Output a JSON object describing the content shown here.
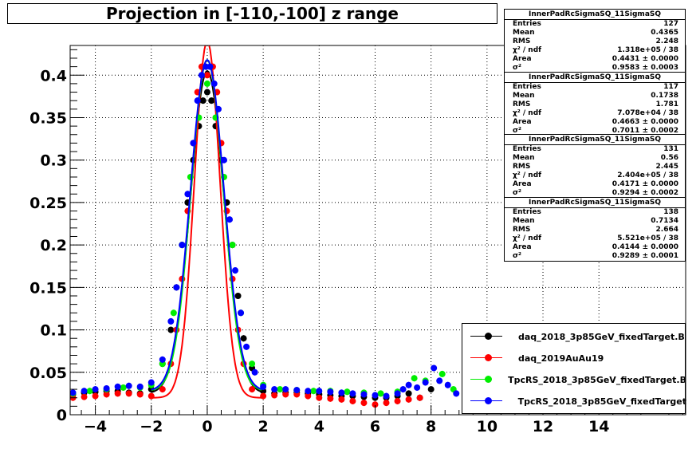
{
  "title": "Projection in [-110,-100] z range",
  "stat_boxes": [
    {
      "name": "InnerPadRcSigmaSQ_11SigmaSQ",
      "entries": "127",
      "mean": "0.4365",
      "rms": "2.248",
      "chi2ndf": "1.318e+05 / 38",
      "area": "0.4431 ± 0.0000",
      "sigma2": "0.9583 ± 0.0003"
    },
    {
      "name": "InnerPadRcSigmaSQ_11SigmaSQ",
      "entries": "117",
      "mean": "0.1738",
      "rms": "1.781",
      "chi2ndf": "7.078e+04 / 38",
      "area": "0.4663 ± 0.0000",
      "sigma2": "0.7011 ± 0.0002"
    },
    {
      "name": "InnerPadRcSigmaSQ_11SigmaSQ",
      "entries": "131",
      "mean": "0.56",
      "rms": "2.445",
      "chi2ndf": "2.404e+05 / 38",
      "area": "0.4171 ± 0.0000",
      "sigma2": "0.9294 ± 0.0002"
    },
    {
      "name": "InnerPadRcSigmaSQ_11SigmaSQ",
      "entries": "138",
      "mean": "0.7134",
      "rms": "2.664",
      "chi2ndf": "5.521e+05 / 38",
      "area": "0.4144 ± 0.0000",
      "sigma2": "0.9289 ± 0.0001"
    }
  ],
  "stat_labels": {
    "entries": "Entries",
    "mean": "Mean",
    "rms": "RMS",
    "chi2ndf": "χ² / ndf",
    "area": "Area",
    "sigma2": "σ²"
  },
  "legend": [
    {
      "label": "daq_2018_3p85GeV_fixedTarget.B",
      "color": "#000000"
    },
    {
      "label": "daq_2019AuAu19",
      "color": "#ff0000"
    },
    {
      "label": "TpcRS_2018_3p85GeV_fixedTarget.B",
      "color": "#00ee00"
    },
    {
      "label": "TpcRS_2018_3p85GeV_fixedTarget",
      "color": "#0000ff"
    }
  ],
  "chart_data": {
    "type": "scatter",
    "title": "Projection in [-110,-100] z range",
    "xlim": [
      -4.9,
      17.1
    ],
    "ylim": [
      0,
      0.435
    ],
    "x_ticks": [
      -4,
      -2,
      0,
      2,
      4,
      6,
      8,
      10,
      12,
      14
    ],
    "y_ticks": [
      0,
      0.05,
      0.1,
      0.15,
      0.2,
      0.25,
      0.3,
      0.35,
      0.4
    ],
    "x_tick_labels": [
      "−4",
      "−2",
      "0",
      "2",
      "4",
      "6",
      "8",
      "10",
      "12",
      "14"
    ],
    "y_tick_labels": [
      "0",
      "0.05",
      "0.1",
      "0.15",
      "0.2",
      "0.25",
      "0.3",
      "0.35",
      "0.4"
    ],
    "grid": true,
    "series": [
      {
        "name": "daq_2018_3p85GeV_fixedTarget.B",
        "color": "#000000",
        "points": [
          [
            -4.8,
            0.024
          ],
          [
            -4.4,
            0.026
          ],
          [
            -4.0,
            0.027
          ],
          [
            -3.6,
            0.028
          ],
          [
            -3.2,
            0.028
          ],
          [
            -2.8,
            0.026
          ],
          [
            -2.4,
            0.025
          ],
          [
            -2.0,
            0.03
          ],
          [
            -1.6,
            0.06
          ],
          [
            -1.3,
            0.1
          ],
          [
            -1.1,
            0.15
          ],
          [
            -0.9,
            0.2
          ],
          [
            -0.7,
            0.25
          ],
          [
            -0.5,
            0.3
          ],
          [
            -0.3,
            0.34
          ],
          [
            -0.15,
            0.37
          ],
          [
            0.0,
            0.38
          ],
          [
            0.15,
            0.37
          ],
          [
            0.3,
            0.34
          ],
          [
            0.5,
            0.3
          ],
          [
            0.7,
            0.25
          ],
          [
            0.9,
            0.2
          ],
          [
            1.1,
            0.14
          ],
          [
            1.3,
            0.09
          ],
          [
            1.6,
            0.055
          ],
          [
            2.0,
            0.028
          ],
          [
            2.4,
            0.025
          ],
          [
            2.8,
            0.026
          ],
          [
            3.2,
            0.026
          ],
          [
            3.6,
            0.025
          ],
          [
            4.0,
            0.024
          ],
          [
            4.4,
            0.023
          ],
          [
            4.8,
            0.022
          ],
          [
            5.2,
            0.022
          ],
          [
            5.6,
            0.021
          ],
          [
            6.0,
            0.02
          ],
          [
            6.4,
            0.02
          ],
          [
            6.8,
            0.022
          ],
          [
            7.2,
            0.025
          ],
          [
            7.6,
            0.02
          ],
          [
            8.0,
            0.03
          ]
        ],
        "curve": {
          "amp": 0.38,
          "sigma": 0.6,
          "base": 0.025
        }
      },
      {
        "name": "daq_2019AuAu19",
        "color": "#ff0000",
        "points": [
          [
            -4.8,
            0.02
          ],
          [
            -4.4,
            0.021
          ],
          [
            -4.0,
            0.022
          ],
          [
            -3.6,
            0.024
          ],
          [
            -3.2,
            0.025
          ],
          [
            -2.8,
            0.025
          ],
          [
            -2.4,
            0.024
          ],
          [
            -2.0,
            0.022
          ],
          [
            -1.6,
            0.03
          ],
          [
            -1.3,
            0.06
          ],
          [
            -1.1,
            0.1
          ],
          [
            -0.9,
            0.16
          ],
          [
            -0.7,
            0.24
          ],
          [
            -0.5,
            0.32
          ],
          [
            -0.35,
            0.38
          ],
          [
            -0.2,
            0.41
          ],
          [
            0.0,
            0.4
          ],
          [
            0.2,
            0.41
          ],
          [
            0.35,
            0.38
          ],
          [
            0.5,
            0.32
          ],
          [
            0.7,
            0.24
          ],
          [
            0.9,
            0.16
          ],
          [
            1.1,
            0.1
          ],
          [
            1.3,
            0.06
          ],
          [
            1.6,
            0.03
          ],
          [
            2.0,
            0.022
          ],
          [
            2.4,
            0.023
          ],
          [
            2.8,
            0.024
          ],
          [
            3.2,
            0.024
          ],
          [
            3.6,
            0.022
          ],
          [
            4.0,
            0.02
          ],
          [
            4.4,
            0.019
          ],
          [
            4.8,
            0.018
          ],
          [
            5.2,
            0.016
          ],
          [
            5.6,
            0.014
          ],
          [
            6.0,
            0.012
          ],
          [
            6.4,
            0.014
          ],
          [
            6.8,
            0.016
          ],
          [
            7.2,
            0.018
          ],
          [
            7.6,
            0.02
          ]
        ],
        "curve": {
          "amp": 0.42,
          "sigma": 0.46,
          "base": 0.02
        }
      },
      {
        "name": "TpcRS_2018_3p85GeV_fixedTarget.B",
        "color": "#00ee00",
        "points": [
          [
            -4.8,
            0.025
          ],
          [
            -4.2,
            0.028
          ],
          [
            -3.6,
            0.03
          ],
          [
            -3.0,
            0.032
          ],
          [
            -2.4,
            0.032
          ],
          [
            -2.0,
            0.035
          ],
          [
            -1.6,
            0.06
          ],
          [
            -1.2,
            0.12
          ],
          [
            -0.9,
            0.2
          ],
          [
            -0.6,
            0.28
          ],
          [
            -0.3,
            0.35
          ],
          [
            0.0,
            0.39
          ],
          [
            0.3,
            0.35
          ],
          [
            0.6,
            0.28
          ],
          [
            0.9,
            0.2
          ],
          [
            1.2,
            0.12
          ],
          [
            1.6,
            0.06
          ],
          [
            2.0,
            0.035
          ],
          [
            2.6,
            0.03
          ],
          [
            3.2,
            0.029
          ],
          [
            3.8,
            0.028
          ],
          [
            4.4,
            0.028
          ],
          [
            5.0,
            0.027
          ],
          [
            5.6,
            0.026
          ],
          [
            6.2,
            0.025
          ],
          [
            6.8,
            0.027
          ],
          [
            7.4,
            0.043
          ],
          [
            7.8,
            0.04
          ],
          [
            8.4,
            0.048
          ],
          [
            8.8,
            0.03
          ]
        ],
        "curve": {
          "amp": 0.39,
          "sigma": 0.58,
          "base": 0.028
        }
      },
      {
        "name": "TpcRS_2018_3p85GeV_fixedTarget",
        "color": "#0000ff",
        "points": [
          [
            -4.8,
            0.026
          ],
          [
            -4.4,
            0.028
          ],
          [
            -4.0,
            0.03
          ],
          [
            -3.6,
            0.031
          ],
          [
            -3.2,
            0.033
          ],
          [
            -2.8,
            0.034
          ],
          [
            -2.4,
            0.033
          ],
          [
            -2.0,
            0.038
          ],
          [
            -1.6,
            0.065
          ],
          [
            -1.3,
            0.11
          ],
          [
            -1.1,
            0.15
          ],
          [
            -0.9,
            0.2
          ],
          [
            -0.7,
            0.26
          ],
          [
            -0.5,
            0.32
          ],
          [
            -0.35,
            0.37
          ],
          [
            -0.2,
            0.4
          ],
          [
            -0.05,
            0.41
          ],
          [
            0.1,
            0.41
          ],
          [
            0.25,
            0.39
          ],
          [
            0.4,
            0.36
          ],
          [
            0.6,
            0.3
          ],
          [
            0.8,
            0.23
          ],
          [
            1.0,
            0.17
          ],
          [
            1.2,
            0.12
          ],
          [
            1.4,
            0.08
          ],
          [
            1.7,
            0.05
          ],
          [
            2.0,
            0.033
          ],
          [
            2.4,
            0.03
          ],
          [
            2.8,
            0.03
          ],
          [
            3.2,
            0.029
          ],
          [
            3.6,
            0.028
          ],
          [
            4.0,
            0.028
          ],
          [
            4.4,
            0.027
          ],
          [
            4.8,
            0.026
          ],
          [
            5.2,
            0.025
          ],
          [
            5.6,
            0.024
          ],
          [
            6.0,
            0.023
          ],
          [
            6.4,
            0.022
          ],
          [
            6.8,
            0.025
          ],
          [
            7.0,
            0.03
          ],
          [
            7.2,
            0.035
          ],
          [
            7.5,
            0.032
          ],
          [
            7.8,
            0.038
          ],
          [
            8.1,
            0.055
          ],
          [
            8.3,
            0.04
          ],
          [
            8.6,
            0.035
          ],
          [
            8.9,
            0.025
          ]
        ],
        "curve": {
          "amp": 0.39,
          "sigma": 0.6,
          "base": 0.028
        }
      }
    ]
  }
}
